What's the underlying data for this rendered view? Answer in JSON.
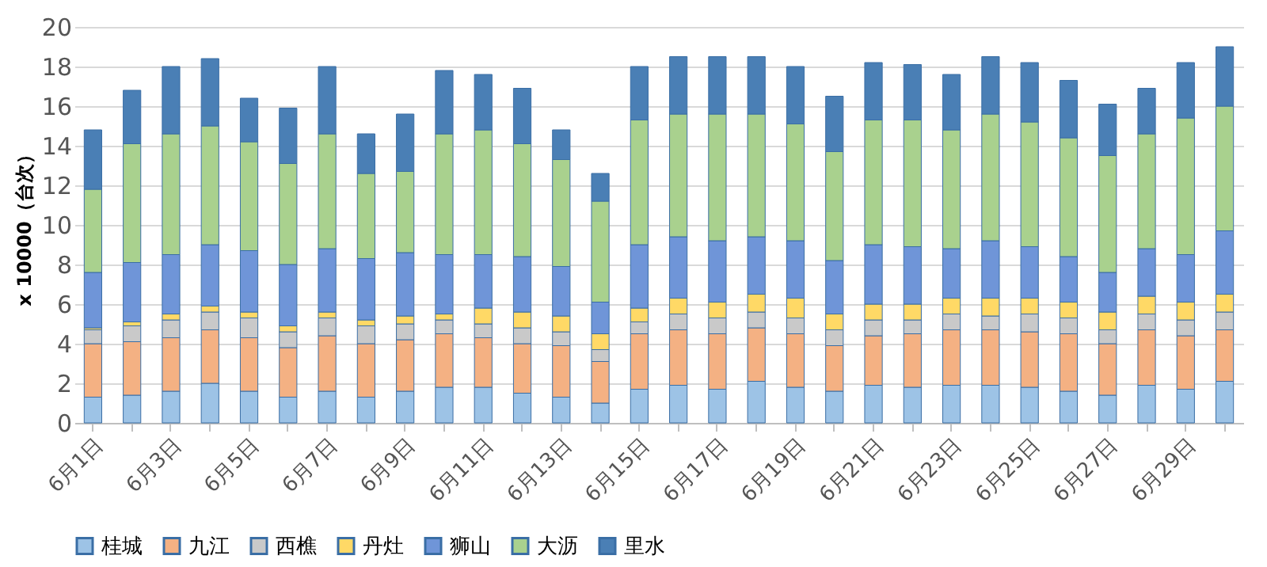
{
  "chart_data": {
    "type": "bar",
    "stacked": true,
    "ylabel": "x 10000（台次）",
    "categories": [
      "6月1日",
      null,
      "6月3日",
      null,
      "6月5日",
      null,
      "6月7日",
      null,
      "6月9日",
      null,
      "6月11日",
      null,
      "6月13日",
      null,
      "6月15日",
      null,
      "6月17日",
      null,
      "6月19日",
      null,
      "6月21日",
      null,
      "6月23日",
      null,
      "6月25日",
      null,
      "6月27日",
      null,
      "6月29日",
      null
    ],
    "ylim": [
      0,
      20
    ],
    "yticks": [
      0,
      2,
      4,
      6,
      8,
      10,
      12,
      14,
      16,
      18,
      20
    ],
    "grid": "y",
    "legend": "bottom",
    "series": [
      {
        "name": "桂城",
        "color": "#9dc3e6",
        "values": [
          1.3,
          1.4,
          1.6,
          2.0,
          1.6,
          1.3,
          1.6,
          1.3,
          1.6,
          1.8,
          1.8,
          1.5,
          1.3,
          1.0,
          1.7,
          1.9,
          1.7,
          2.1,
          1.8,
          1.6,
          1.9,
          1.8,
          1.9,
          1.9,
          1.8,
          1.6,
          1.4,
          1.9,
          1.7,
          2.1
        ]
      },
      {
        "name": "九江",
        "color": "#f4b183",
        "values": [
          2.7,
          2.7,
          2.7,
          2.7,
          2.7,
          2.5,
          2.8,
          2.7,
          2.6,
          2.7,
          2.5,
          2.5,
          2.6,
          2.1,
          2.8,
          2.8,
          2.8,
          2.7,
          2.7,
          2.3,
          2.5,
          2.7,
          2.8,
          2.8,
          2.8,
          2.9,
          2.6,
          2.8,
          2.7,
          2.6
        ]
      },
      {
        "name": "西樵",
        "color": "#c9c9c9",
        "values": [
          0.7,
          0.8,
          0.9,
          0.9,
          1.0,
          0.8,
          0.9,
          0.9,
          0.8,
          0.7,
          0.7,
          0.8,
          0.7,
          0.6,
          0.6,
          0.8,
          0.8,
          0.8,
          0.8,
          0.8,
          0.8,
          0.7,
          0.8,
          0.7,
          0.9,
          0.8,
          0.7,
          0.8,
          0.8,
          0.9
        ]
      },
      {
        "name": "丹灶",
        "color": "#ffd966",
        "values": [
          0.1,
          0.2,
          0.3,
          0.3,
          0.3,
          0.3,
          0.3,
          0.3,
          0.4,
          0.3,
          0.8,
          0.8,
          0.8,
          0.8,
          0.7,
          0.8,
          0.8,
          0.9,
          1.0,
          0.8,
          0.8,
          0.8,
          0.8,
          0.9,
          0.8,
          0.8,
          0.9,
          0.9,
          0.9,
          0.9
        ]
      },
      {
        "name": "狮山",
        "color": "#6f95d8",
        "values": [
          2.8,
          3.0,
          3.0,
          3.1,
          3.1,
          3.1,
          3.2,
          3.1,
          3.2,
          3.0,
          2.7,
          2.8,
          2.5,
          1.6,
          3.2,
          3.1,
          3.1,
          2.9,
          2.9,
          2.7,
          3.0,
          2.9,
          2.5,
          2.9,
          2.6,
          2.3,
          2.0,
          2.4,
          2.4,
          3.2
        ]
      },
      {
        "name": "大沥",
        "color": "#a9d18e",
        "values": [
          4.2,
          6.0,
          6.1,
          6.0,
          5.5,
          5.1,
          5.8,
          4.3,
          4.1,
          6.1,
          6.3,
          5.7,
          5.4,
          5.1,
          6.3,
          6.2,
          6.4,
          6.2,
          5.9,
          5.5,
          6.3,
          6.4,
          6.0,
          6.4,
          6.3,
          6.0,
          5.9,
          5.8,
          6.9,
          6.3
        ]
      },
      {
        "name": "里水",
        "color": "#4a7fb5",
        "values": [
          3.0,
          2.7,
          3.4,
          3.4,
          2.2,
          2.8,
          3.4,
          2.0,
          2.9,
          3.2,
          2.8,
          2.8,
          1.5,
          1.4,
          2.7,
          2.9,
          2.9,
          2.9,
          2.9,
          2.8,
          2.9,
          2.8,
          2.8,
          2.9,
          3.0,
          2.9,
          2.6,
          2.3,
          2.8,
          3.0
        ]
      }
    ]
  }
}
